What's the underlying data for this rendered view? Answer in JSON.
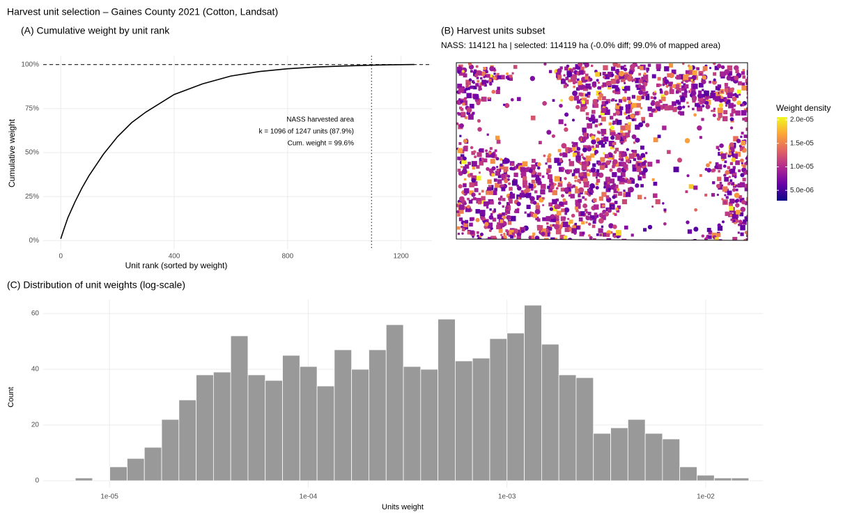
{
  "title": "Harvest unit selection – Gaines County 2021 (Cotton, Landsat)",
  "chart_data": [
    {
      "type": "line",
      "title": "(A) Cumulative weight by unit rank",
      "xlabel": "Unit rank (sorted by weight)",
      "ylabel": "Cumulative weight",
      "x": [
        0,
        10,
        25,
        50,
        75,
        100,
        150,
        200,
        250,
        300,
        400,
        500,
        600,
        700,
        800,
        900,
        1000,
        1096,
        1150,
        1247
      ],
      "values": [
        1,
        6,
        13,
        22,
        30,
        37,
        49,
        59,
        67,
        73,
        83,
        89,
        93.5,
        96,
        97.6,
        98.6,
        99.2,
        99.6,
        99.8,
        100
      ],
      "color": "#000000",
      "xlim": [
        -62,
        1309
      ],
      "xticks": [
        0,
        400,
        800,
        1200
      ],
      "ylim": [
        -5,
        105
      ],
      "yticks": [
        {
          "value": 0,
          "label": "0%"
        },
        {
          "value": 25,
          "label": "25%"
        },
        {
          "value": 50,
          "label": "50%"
        },
        {
          "value": 75,
          "label": "75%"
        },
        {
          "value": 100,
          "label": "100%"
        }
      ],
      "hline": 100,
      "vline": 1096,
      "annotation": [
        "NASS harvested area",
        "k = 1096 of 1247 units (87.9%)",
        "Cum. weight = 99.6%"
      ],
      "grid": true
    },
    {
      "type": "map",
      "title": "(B) Harvest units subset",
      "subtitle": "NASS: 114121 ha | selected: 114119 ha (-0.0% diff; 99.0% of mapped area)",
      "legend": {
        "title": "Weight density",
        "lim": [
          2.8e-06,
          2.06e-05
        ],
        "ticks": [
          {
            "value": 5e-06,
            "label": "5.0e-06"
          },
          {
            "value": 1e-05,
            "label": "1.0e-05"
          },
          {
            "value": 1.5e-05,
            "label": "1.5e-05"
          },
          {
            "value": 2e-05,
            "label": "2.0e-05"
          }
        ],
        "colors": [
          "#0d0887",
          "#6a00a8",
          "#b12a90",
          "#e16462",
          "#fca636",
          "#f0f921"
        ]
      }
    },
    {
      "type": "histogram",
      "title": "(C) Distribution of unit weights (log-scale)",
      "xlabel": "Units weight",
      "ylabel": "Count",
      "log_x": true,
      "color": "#999999",
      "bins": [
        6.73e-06,
        8.22e-06,
        1.004e-05,
        1.227e-05,
        1.498e-05,
        1.83e-05,
        2.236e-05,
        2.731e-05,
        3.336e-05,
        4.075e-05,
        4.977e-05,
        6.079e-05,
        7.426e-05,
        9.071e-05,
        0.0001108,
        0.0001353,
        0.0001653,
        0.0002019,
        0.0002467,
        0.0003013,
        0.0003681,
        0.0004496,
        0.0005492,
        0.0006708,
        0.0008194,
        0.001001,
        0.001223,
        0.001494,
        0.001825,
        0.002229,
        0.002723,
        0.003326,
        0.004062,
        0.004962,
        0.006061,
        0.007404,
        0.009044,
        0.01105,
        0.01349,
        0.01648
      ],
      "values": [
        1,
        0,
        5,
        8,
        12,
        22,
        29,
        38,
        39,
        52,
        38,
        36,
        45,
        41,
        34,
        47,
        40,
        47,
        56,
        41,
        40,
        58,
        43,
        44,
        51,
        53,
        63,
        49,
        38,
        37,
        17,
        19,
        22,
        17,
        15,
        5,
        2,
        1,
        1
      ],
      "xlim": [
        4.64e-06,
        0.0194
      ],
      "xticks": [
        {
          "value": 1e-05,
          "label": "1e-05"
        },
        {
          "value": 0.0001,
          "label": "1e-04"
        },
        {
          "value": 0.001,
          "label": "1e-03"
        },
        {
          "value": 0.01,
          "label": "1e-02"
        }
      ],
      "ylim": [
        -2.5,
        65
      ],
      "yticks": [
        0,
        20,
        40,
        60
      ],
      "grid": true
    }
  ]
}
